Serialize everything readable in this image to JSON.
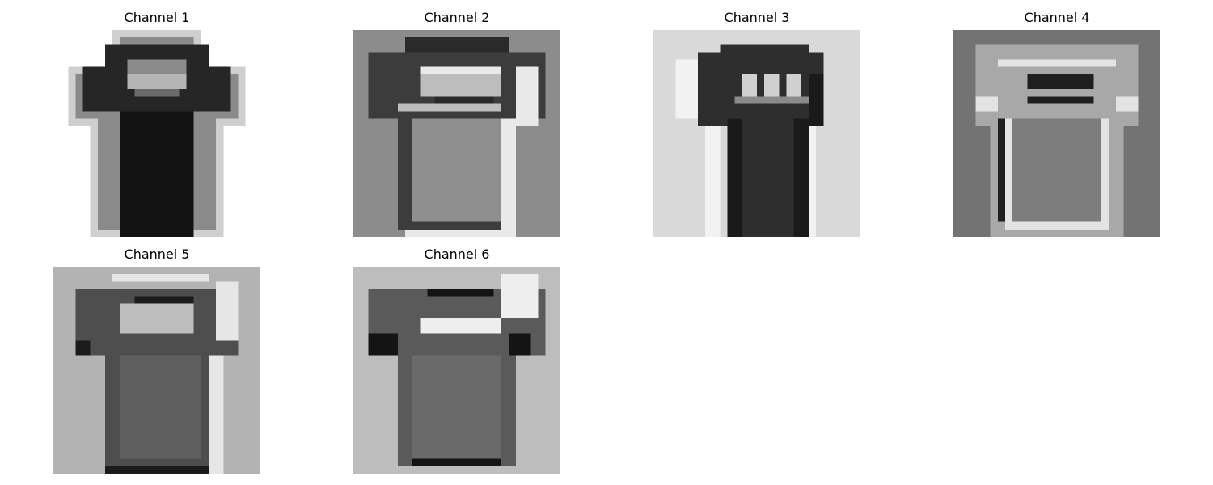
{
  "figure": {
    "panels": [
      {
        "title": "Channel 1",
        "background_color": "#ffffff",
        "variant": 1
      },
      {
        "title": "Channel 2",
        "background_color": "#8c8c8c",
        "variant": 2
      },
      {
        "title": "Channel 3",
        "background_color": "#d9d9d9",
        "variant": 3
      },
      {
        "title": "Channel 4",
        "background_color": "#737373",
        "variant": 4
      },
      {
        "title": "Channel 5",
        "background_color": "#b3b3b3",
        "variant": 5
      },
      {
        "title": "Channel 6",
        "background_color": "#bdbdbd",
        "variant": 6
      }
    ]
  }
}
